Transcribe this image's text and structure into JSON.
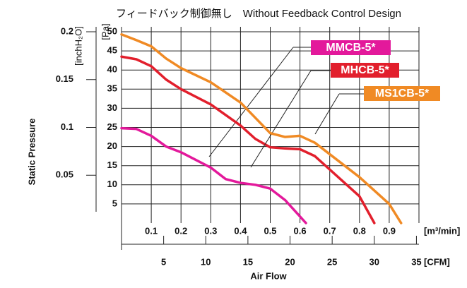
{
  "chart_data": {
    "type": "line",
    "title": "フィードバック制御無し　Without Feedback Control Design",
    "y_label": "Static Pressure",
    "x_label": "Air Flow",
    "y_unit": "[Pa]",
    "y2_unit": "[inchH₂O]",
    "x_unit": "[m³/min]",
    "x2_unit": "[CFM]",
    "xlim": [
      0,
      1.0
    ],
    "xticks": [
      0.1,
      0.2,
      0.3,
      0.4,
      0.5,
      0.6,
      0.7,
      0.8,
      0.9
    ],
    "x2lim": [
      0,
      35.3
    ],
    "x2ticks": [
      5,
      10,
      15,
      20,
      25,
      30,
      35
    ],
    "ylim": [
      0,
      50
    ],
    "yticks": [
      5,
      10,
      15,
      20,
      25,
      30,
      35,
      40,
      45,
      50
    ],
    "y2lim": [
      0,
      0.2
    ],
    "y2ticks": [
      0.05,
      0.1,
      0.15,
      0.2
    ],
    "grid": true,
    "series": [
      {
        "name": "MMCB-5*",
        "color": "#e3199b",
        "x": [
          0,
          0.05,
          0.1,
          0.15,
          0.2,
          0.3,
          0.35,
          0.4,
          0.45,
          0.5,
          0.55,
          0.62
        ],
        "values": [
          24.8,
          24.6,
          22.8,
          20,
          18.5,
          14.5,
          11.5,
          10.5,
          10,
          9,
          6,
          0
        ]
      },
      {
        "name": "MHCB-5*",
        "color": "#e21f2c",
        "x": [
          0,
          0.05,
          0.1,
          0.15,
          0.2,
          0.3,
          0.4,
          0.45,
          0.5,
          0.55,
          0.6,
          0.65,
          0.7,
          0.8,
          0.85
        ],
        "values": [
          43.5,
          42.8,
          41,
          37.5,
          35,
          31,
          25.5,
          22,
          19.8,
          19.5,
          19.3,
          17.5,
          14,
          7,
          0
        ]
      },
      {
        "name": "MS1CB-5*",
        "color": "#f08a24",
        "x": [
          0,
          0.05,
          0.1,
          0.15,
          0.2,
          0.3,
          0.4,
          0.45,
          0.5,
          0.55,
          0.6,
          0.65,
          0.7,
          0.8,
          0.9,
          0.94
        ],
        "values": [
          49.3,
          47.8,
          46.2,
          43,
          40.5,
          36.8,
          31.5,
          27.5,
          23.5,
          22.5,
          22.8,
          21,
          18,
          12,
          5,
          0
        ]
      }
    ]
  }
}
